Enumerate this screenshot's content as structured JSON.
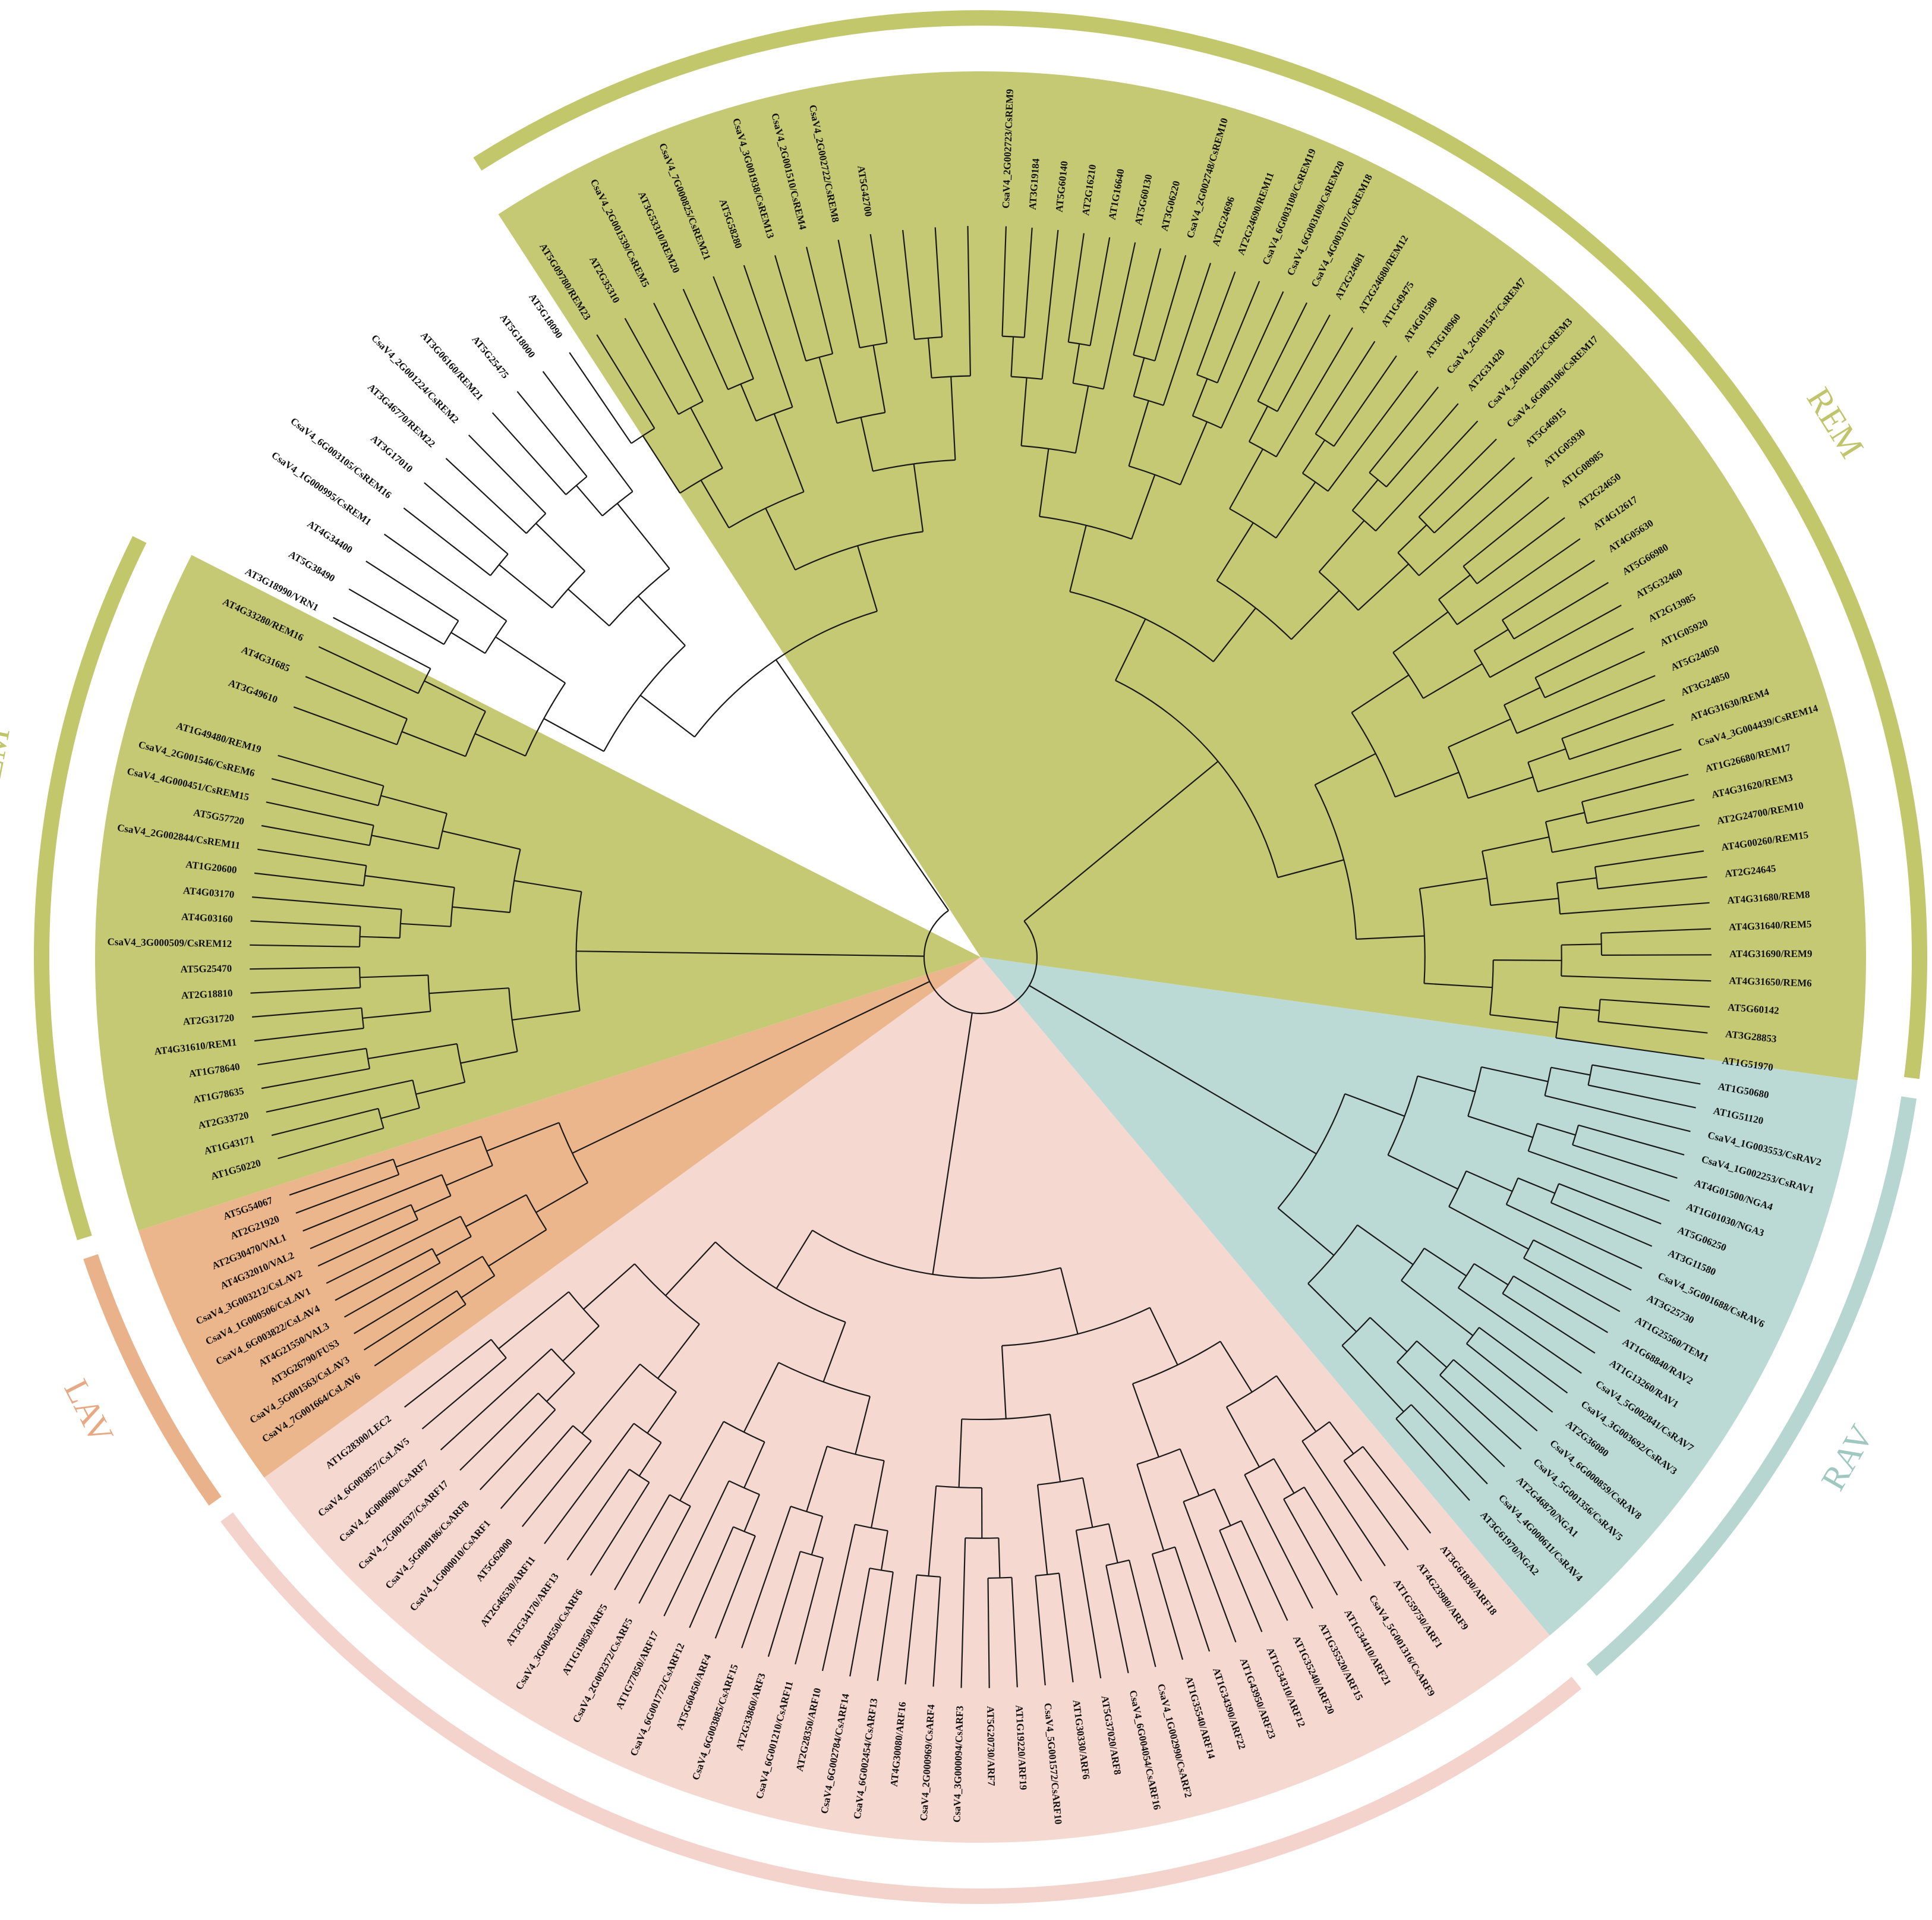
{
  "figure": {
    "type": "circular-phylogenetic-tree"
  },
  "groups": [
    {
      "name": "REM",
      "color": "#c5c974",
      "arc_color": "#c3c76c",
      "label_color": "#c0c46a",
      "start_angle": -33,
      "end_angle": 98,
      "label_angle": 58,
      "show_label": true
    },
    {
      "name": "RAV",
      "color": "#bcdad5",
      "arc_color": "#b7d6d1",
      "label_color": "#9fc8c1",
      "start_angle": 98,
      "end_angle": 140,
      "label_angle": 120,
      "show_label": true
    },
    {
      "name": "ARF",
      "color": "#f5d8d0",
      "arc_color": "#f3d3cb",
      "label_color": "#efc3b8",
      "start_angle": 140,
      "end_angle": 234,
      "label_angle": 185,
      "show_label": true
    },
    {
      "name": "LAV",
      "color": "#ecb68c",
      "arc_color": "#e9b28a",
      "label_color": "#e7a983",
      "start_angle": 234,
      "end_angle": 252,
      "label_angle": 243,
      "show_label": true
    },
    {
      "name": "REM",
      "color": "#c5c974",
      "arc_color": "#c3c76c",
      "label_color": "#c0c46a",
      "start_angle": 252,
      "end_angle": 297,
      "label_angle": 281,
      "show_label": true
    }
  ],
  "leaves": [
    "CsaV4_2G002723/CsREM9",
    "AT3G19184",
    "AT5G60140",
    "AT2G16210",
    "AT1G16640",
    "AT5G60130",
    "AT3G06220",
    "CsaV4_2G002748/CsREM10",
    "AT2G24696",
    "AT2G24690/REM11",
    "CsaV4_6G003108/CsREM19",
    "CsaV4_6G003109/CsREM20",
    "CsaV4_4G003107/CsREM18",
    "AT2G24681",
    "AT2G24680/REM12",
    "AT1G49475",
    "AT4G01580",
    "AT3G18960",
    "CsaV4_2G001547/CsREM7",
    "AT2G31420",
    "CsaV4_2G001225/CsREM3",
    "CsaV4_6G003106/CsREM17",
    "AT5G46915",
    "AT1G05930",
    "AT1G08985",
    "AT2G24650",
    "AT4G12617",
    "AT4G05630",
    "AT5G66980",
    "AT5G32460",
    "AT2G13985",
    "AT1G05920",
    "AT5G24050",
    "AT3G24850",
    "AT4G31630/REM4",
    "CsaV4_3G004439/CsREM14",
    "AT1G26680/REM17",
    "AT4G31620/REM3",
    "AT2G24700/REM10",
    "AT4G00260/REM15",
    "AT2G24645",
    "AT4G31680/REM8",
    "AT4G31640/REM5",
    "AT4G31690/REM9",
    "AT4G31650/REM6",
    "AT5G60142",
    "AT3G28853",
    "AT1G51970",
    "AT1G50680",
    "AT1G51120",
    "CsaV4_1G003553/CsRAV2",
    "CsaV4_1G002253/CsRAV1",
    "AT4G01500/NGA4",
    "AT1G01030/NGA3",
    "AT5G06250",
    "AT3G11580",
    "CsaV4_5G001688/CsRAV6",
    "AT3G25730",
    "AT1G25560/TEM1",
    "AT1G68840/RAV2",
    "AT1G13260/RAV1",
    "CsaV4_5G002841/CsRAV7",
    "CsaV4_3G003692/CsRAV3",
    "AT2G36080",
    "CsaV4_6G000859/CsRAV8",
    "CsaV4_5G001356/CsRAV5",
    "AT2G46870/NGA1",
    "CsaV4_4G000611/CsRAV4",
    "AT3G61970/NGA2",
    "AT3G61830/ARF18",
    "AT4G23980/ARF9",
    "AT1G59750/ARF1",
    "CsaV4_5G001316/CsARF9",
    "AT1G34410/ARF21",
    "AT1G35520/ARF15",
    "AT1G35240/ARF20",
    "AT1G34310/ARF12",
    "AT1G43950/ARF23",
    "AT1G34390/ARF22",
    "AT1G35540/ARF14",
    "CsaV4_1G002990/CsARF2",
    "CsaV4_6G004054/CsARF16",
    "AT5G37020/ARF8",
    "AT1G30330/ARF6",
    "CsaV4_5G001572/CsARF10",
    "AT1G19220/ARF19",
    "AT5G20730/ARF7",
    "CsaV4_3G000094/CsARF3",
    "CsaV4_2G000969/CsARF4",
    "AT4G30080/ARF16",
    "CsaV4_6G002454/CsARF13",
    "CsaV4_6G002784/CsARF14",
    "AT2G28350/ARF10",
    "CsaV4_6G001210/CsARF11",
    "AT2G33860/ARF3",
    "CsaV4_6G003885/CsARF15",
    "AT5G60450/ARF4",
    "CsaV4_6G001772/CsARF12",
    "AT1G77850/ARF17",
    "CsaV4_2G002372/CsARF5",
    "AT1G19850/ARF5",
    "CsaV4_3G004550/CsARF6",
    "AT3G34170/ARF13",
    "AT2G46530/ARF11",
    "AT5G62000",
    "CsaV4_1G000010/CsARF1",
    "CsaV4_5G000186/CsARF8",
    "CsaV4_7G001637/CsARF17",
    "CsaV4_4G000690/CsARF7",
    "CsaV4_6G003857/CsLAV5",
    "AT1G28300/LEC2",
    "CsaV4_7G001664/CsLAV6",
    "CsaV4_5G001563/CsLAV3",
    "AT3G26790/FUS3",
    "AT4G21550/VAL3",
    "CsaV4_6G003822/CsLAV4",
    "CsaV4_1G000506/CsLAV1",
    "CsaV4_3G003212/CsLAV2",
    "AT4G32010/VAL2",
    "AT2G30470/VAL1",
    "AT2G21920",
    "AT5G54067",
    "AT1G50220",
    "AT1G43171",
    "AT2G33720",
    "AT1G78635",
    "AT1G78640",
    "AT4G31610/REM1",
    "AT2G31720",
    "AT2G18810",
    "AT5G25470",
    "CsaV4_3G000509/CsREM12",
    "AT4G03160",
    "AT4G03170",
    "AT1G20600",
    "CsaV4_2G002844/CsREM11",
    "AT5G57720",
    "CsaV4_4G000451/CsREM15",
    "CsaV4_2G001546/CsREM6",
    "AT1G49480/REM19",
    "AT3G49610",
    "AT4G31685",
    "AT4G33280/REM16",
    "AT3G18990/VRN1",
    "AT5G38490",
    "AT4G34400",
    "CsaV4_1G000995/CsREM1",
    "CsaV4_6G003105/CsREM16",
    "AT3G17010",
    "AT3G46770/REM22",
    "CsaV4_2G001224/CsREM2",
    "AT3G06160/REM21",
    "AT5G25475",
    "AT5G18000",
    "AT5G18090",
    "AT5G09780/REM23",
    "AT2G35310",
    "CsaV4_2G001539/CsREM5",
    "AT3G53310/REM20",
    "CsaV4_7G000825/CsREM21",
    "AT5G58280",
    "CsaV4_3G001938/CsREM13",
    "CsaV4_2G001510/CsREM4",
    "CsaV4_2G002722/CsREM8",
    "AT5G42700"
  ]
}
